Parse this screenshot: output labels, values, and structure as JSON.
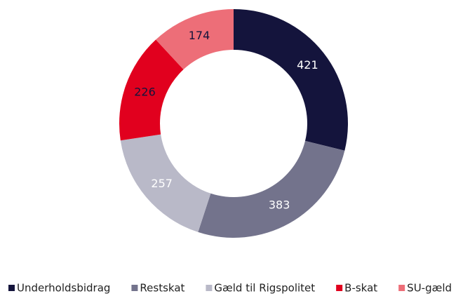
{
  "chart_data": {
    "type": "pie",
    "categories": [
      "Underholdsbidrag",
      "Restskat",
      "Gæld til Rigspolitet",
      "B-skat",
      "SU-gæld"
    ],
    "values": [
      421,
      383,
      257,
      226,
      174
    ],
    "colors": [
      "#14143c",
      "#73738c",
      "#b9b9c8",
      "#e1001e",
      "#ed6e78"
    ],
    "label_colors": [
      "#ffffff",
      "#ffffff",
      "#ffffff",
      "#14143c",
      "#14143c"
    ],
    "legend": "bottom"
  }
}
